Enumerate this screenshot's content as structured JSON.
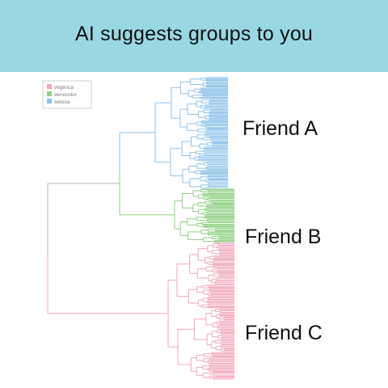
{
  "banner": {
    "title": "AI suggests groups to you",
    "color": "#99d8e3"
  },
  "legend": {
    "items": [
      {
        "label": "virginica",
        "color": "#f2a7bb"
      },
      {
        "label": "versicolor",
        "color": "#8fd083"
      },
      {
        "label": "setosa",
        "color": "#8ec3ea"
      }
    ]
  },
  "groups": [
    {
      "label": "Friend A",
      "species": "setosa",
      "color": "#8ec3ea"
    },
    {
      "label": "Friend B",
      "species": "versicolor",
      "color": "#8fd083"
    },
    {
      "label": "Friend C",
      "species": "virginica",
      "color": "#f2a7bb"
    }
  ],
  "tree": {
    "root_color": "#b7b7b7",
    "orientation": "horizontal"
  }
}
